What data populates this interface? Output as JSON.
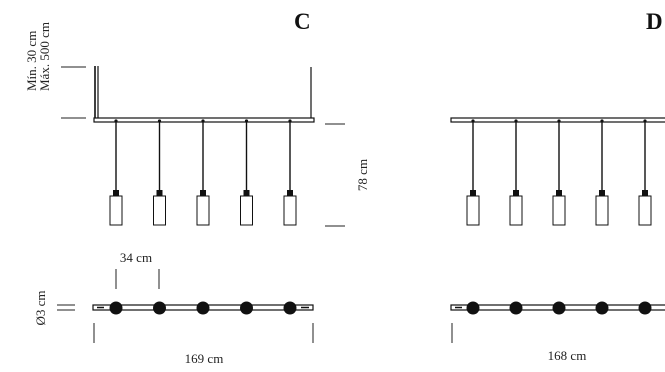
{
  "height_range": {
    "min": "Mín. 30 cm",
    "max": "Máx. 500 cm"
  },
  "variants": [
    {
      "letter": "C",
      "drop_height": "78 cm",
      "spacing": "34 cm",
      "diameter": "Ø3 cm",
      "length": "169 cm",
      "pendant_count": 5
    },
    {
      "letter": "D",
      "length": "168 cm",
      "pendant_count": 5
    }
  ]
}
